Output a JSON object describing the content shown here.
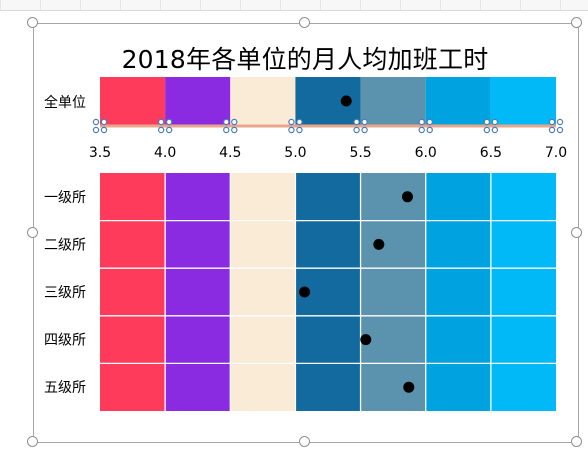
{
  "chart_data": {
    "type": "scatter",
    "title": "2018年各单位的月人均加班工时",
    "xlim": [
      3.5,
      7.0
    ],
    "x_ticks": [
      "3.5",
      "4.0",
      "4.5",
      "5.0",
      "5.5",
      "6.0",
      "6.5",
      "7.0"
    ],
    "bands": [
      {
        "from": 3.5,
        "to": 4.0,
        "color": "#FF3B5C"
      },
      {
        "from": 4.0,
        "to": 4.5,
        "color": "#8A2BE2"
      },
      {
        "from": 4.5,
        "to": 5.0,
        "color": "#FAEBD7"
      },
      {
        "from": 5.0,
        "to": 5.5,
        "color": "#136A9E"
      },
      {
        "from": 5.5,
        "to": 6.0,
        "color": "#5B93AF"
      },
      {
        "from": 6.0,
        "to": 6.5,
        "color": "#00A2E0"
      },
      {
        "from": 6.5,
        "to": 7.0,
        "color": "#00B9F6"
      }
    ],
    "summary": {
      "label": "全单位",
      "value": 5.39
    },
    "categories": [
      "一级所",
      "二级所",
      "三级所",
      "四级所",
      "五级所"
    ],
    "values": [
      5.86,
      5.64,
      5.07,
      5.54,
      5.87
    ],
    "marker_color": "#000000"
  }
}
